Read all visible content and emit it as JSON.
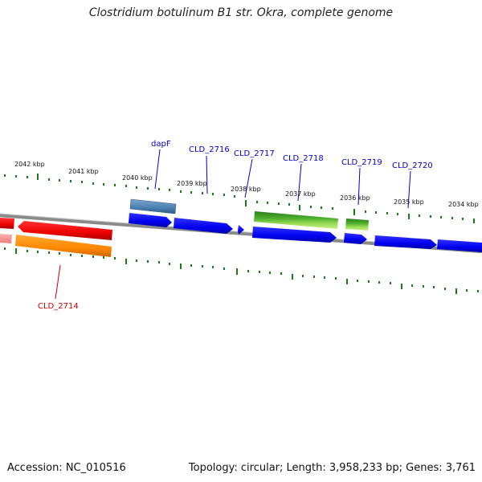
{
  "title": "Clostridium botulinum B1 str. Okra, complete genome",
  "footer": {
    "accession": "Accession: NC_010516",
    "summary": "Topology: circular; Length: 3,958,233 bp; Genes: 3,761"
  },
  "colors": {
    "forward_cds": "#0000ee",
    "reverse_cds": "#ee0000",
    "other_reverse": "#ff8800",
    "rna_like": "#4a7fb0",
    "green_feature": "#3c9a2c",
    "tick": "#1a7a1a",
    "backbone": "#888888",
    "blue_label": "#0000cc",
    "red_label": "#cc0000"
  },
  "ticks": [
    {
      "label": "2042 kbp"
    },
    {
      "label": "2041 kbp"
    },
    {
      "label": "2040 kbp"
    },
    {
      "label": "2039 kbp"
    },
    {
      "label": "2038 kbp"
    },
    {
      "label": "2037 kbp"
    },
    {
      "label": "2036 kbp"
    },
    {
      "label": "2035 kbp"
    },
    {
      "label": "2034 kbp"
    }
  ],
  "gene_labels": [
    {
      "name": "dapF"
    },
    {
      "name": "CLD_2716"
    },
    {
      "name": "CLD_2717"
    },
    {
      "name": "CLD_2718"
    },
    {
      "name": "CLD_2719"
    },
    {
      "name": "CLD_2720"
    },
    {
      "name": "CLD_2714"
    }
  ]
}
